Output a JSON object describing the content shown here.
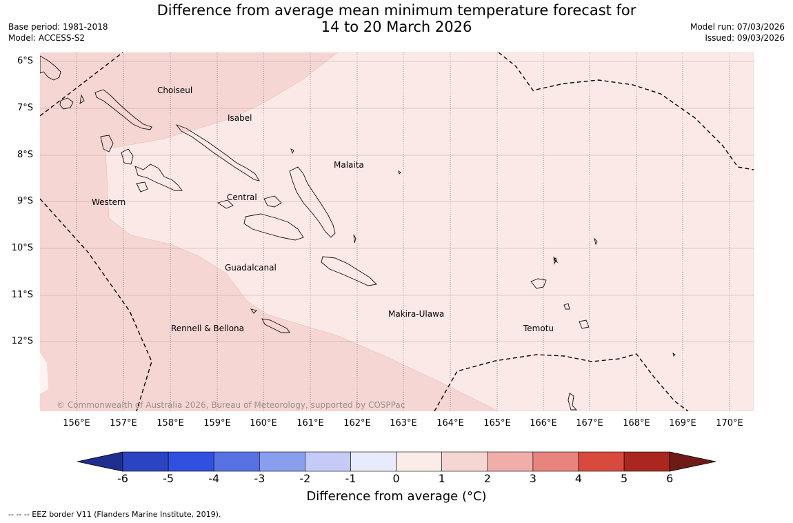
{
  "header": {
    "title_line1": "Difference from average mean minimum temperature forecast for",
    "title_line2": "14 to 20 March 2026",
    "base_period": "Base period: 1981-2018",
    "model": "Model: ACCESS-S2",
    "model_run": "Model run: 07/03/2026",
    "issued": "Issued: 09/03/2026"
  },
  "map": {
    "lat_labels": [
      "6°S",
      "7°S",
      "8°S",
      "9°S",
      "10°S",
      "11°S",
      "12°S"
    ],
    "lon_labels": [
      "156°E",
      "157°E",
      "158°E",
      "159°E",
      "160°E",
      "161°E",
      "162°E",
      "163°E",
      "164°E",
      "165°E",
      "166°E",
      "167°E",
      "168°E",
      "169°E",
      "170°E"
    ],
    "regions": {
      "choiseul": "Choiseul",
      "isabel": "Isabel",
      "malaita": "Malaita",
      "western": "Western",
      "central": "Central",
      "guadalcanal": "Guadalcanal",
      "makira": "Makira-Ulawa",
      "temotu": "Temotu",
      "rennell": "Rennell & Bellona"
    },
    "copyright": "© Commonwealth of Australia 2026, Bureau of Meteorology, supported by COSPPac",
    "colors": {
      "band_1_2": "#f5d6d3",
      "band_0_1": "#fbe9e7",
      "band_light": "#fdf4f2"
    }
  },
  "colorbar": {
    "ticks": [
      "-6",
      "-5",
      "-4",
      "-3",
      "-2",
      "-1",
      "0",
      "1",
      "2",
      "3",
      "4",
      "5",
      "6"
    ],
    "label": "Difference from average (",
    "label_unit": "°C",
    "label_close": ")",
    "colors": [
      "#1f2f8f",
      "#2b44c2",
      "#3050e0",
      "#5872e3",
      "#8a9eee",
      "#c3cbf6",
      "#e8ebfc",
      "#fbebe9",
      "#f5d6d3",
      "#efaeaa",
      "#e6847d",
      "#d94a3e",
      "#a9271f",
      "#6d1b14"
    ]
  },
  "legend": {
    "eez_note": "--  --  -- EEZ border V11 (Flanders Marine Institute, 2019)."
  }
}
